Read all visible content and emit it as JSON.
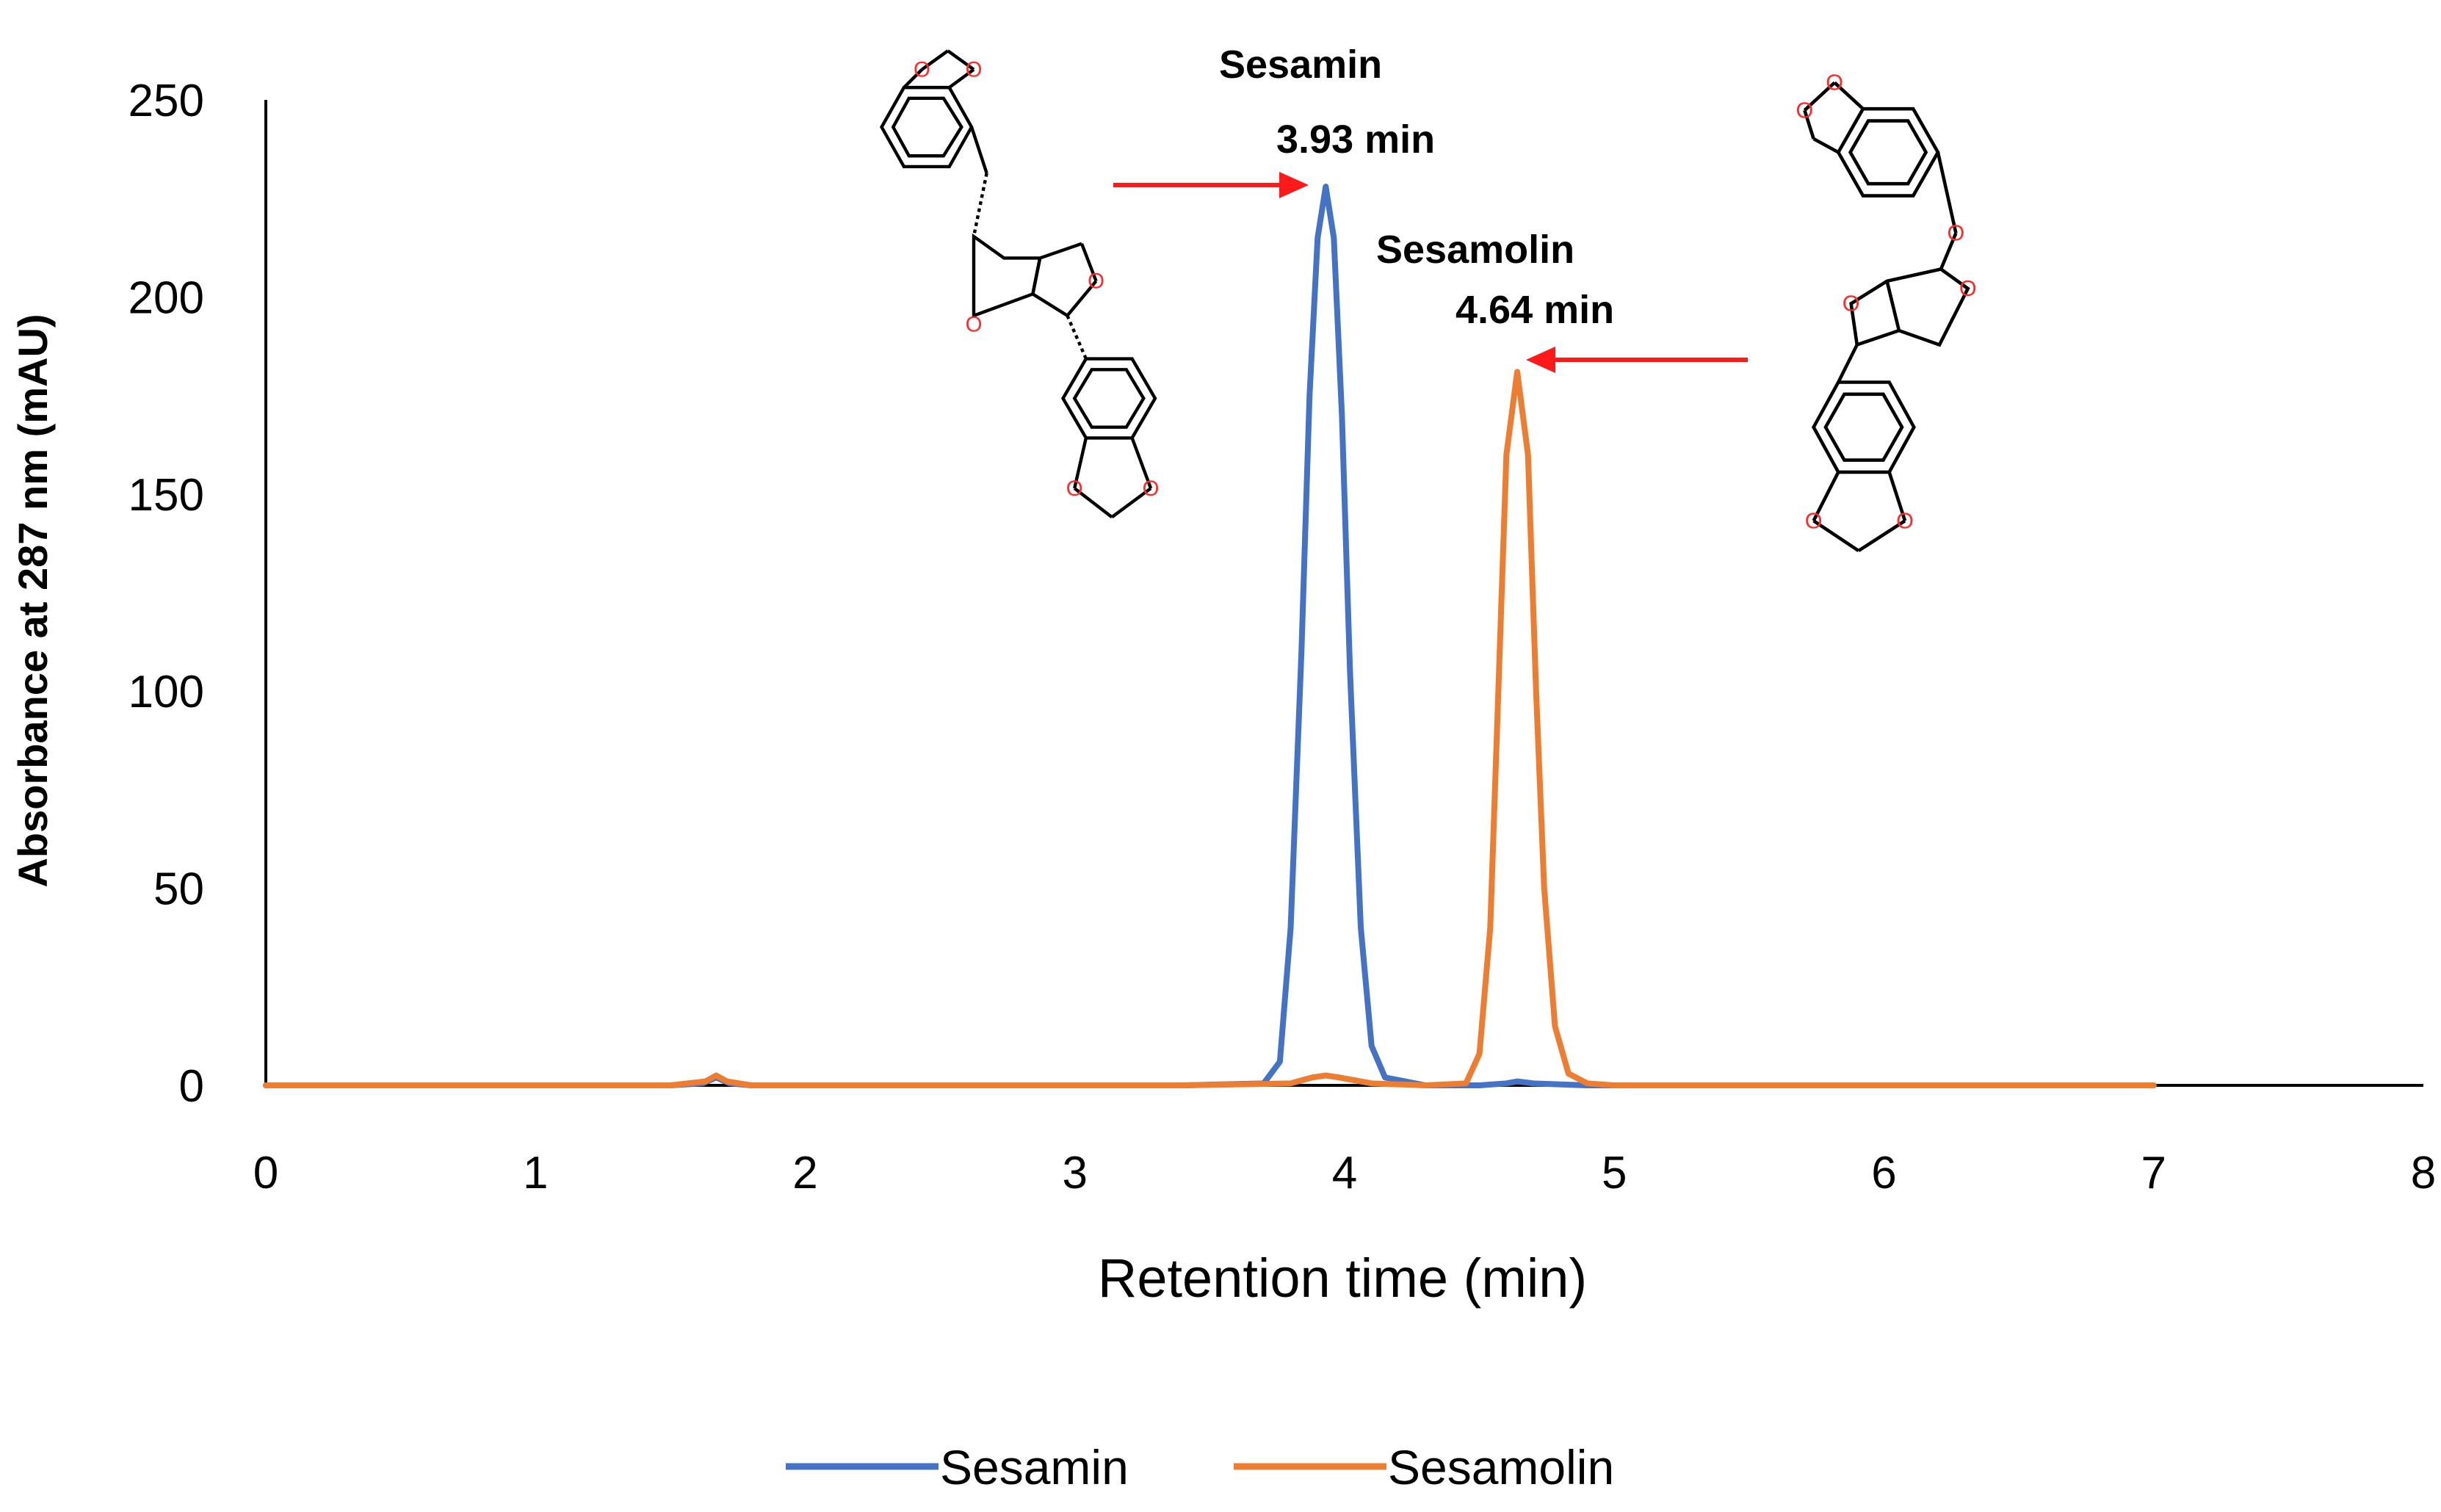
{
  "chart_data": {
    "type": "line",
    "title": "",
    "xlabel": "Retention time (min)",
    "ylabel": "Absorbance at 287 nm (mAU)",
    "xlim": [
      0,
      8
    ],
    "ylim": [
      0,
      250
    ],
    "xticks": [
      0,
      1,
      2,
      3,
      4,
      5,
      6,
      7,
      8
    ],
    "yticks": [
      0,
      50,
      100,
      150,
      200,
      250
    ],
    "grid": false,
    "legend": "bottom",
    "series": [
      {
        "name": "Sesamin",
        "color": "#4472c4",
        "x": [
          0,
          0.5,
          1.0,
          1.5,
          1.62,
          1.67,
          1.72,
          1.8,
          2.2,
          2.8,
          3.4,
          3.7,
          3.76,
          3.8,
          3.84,
          3.87,
          3.9,
          3.93,
          3.96,
          3.99,
          4.02,
          4.06,
          4.1,
          4.15,
          4.3,
          4.5,
          4.6,
          4.64,
          4.7,
          4.9,
          5.5,
          6.0,
          6.5,
          7.0
        ],
        "y": [
          0,
          0,
          0,
          0,
          0.5,
          2,
          0.5,
          0,
          0,
          0,
          0,
          0.5,
          6,
          40,
          110,
          175,
          215,
          228,
          215,
          170,
          105,
          40,
          10,
          2,
          0,
          0,
          0.5,
          1,
          0.5,
          0,
          0,
          0,
          0,
          0
        ]
      },
      {
        "name": "Sesamolin",
        "color": "#ed7d31",
        "x": [
          0,
          0.5,
          1.0,
          1.5,
          1.63,
          1.67,
          1.71,
          1.8,
          2.2,
          2.8,
          3.4,
          3.8,
          3.88,
          3.93,
          3.98,
          4.1,
          4.3,
          4.45,
          4.5,
          4.54,
          4.57,
          4.6,
          4.64,
          4.68,
          4.71,
          4.74,
          4.78,
          4.83,
          4.9,
          5.0,
          5.5,
          6.0,
          6.5,
          7.0
        ],
        "y": [
          0,
          0,
          0,
          0,
          1,
          2.5,
          1,
          0,
          0,
          0,
          0,
          0.5,
          2,
          2.5,
          2,
          0.5,
          0,
          0.5,
          8,
          40,
          100,
          160,
          181,
          160,
          100,
          50,
          15,
          3,
          0.5,
          0,
          0,
          0,
          0,
          0
        ]
      }
    ],
    "annotations": [
      {
        "name": "Sesamin",
        "label": "3.93 min",
        "x": 3.93,
        "y": 228
      },
      {
        "name": "Sesamolin",
        "label": "4.64 min",
        "x": 4.64,
        "y": 181
      }
    ],
    "structure_atom_label": "O"
  }
}
